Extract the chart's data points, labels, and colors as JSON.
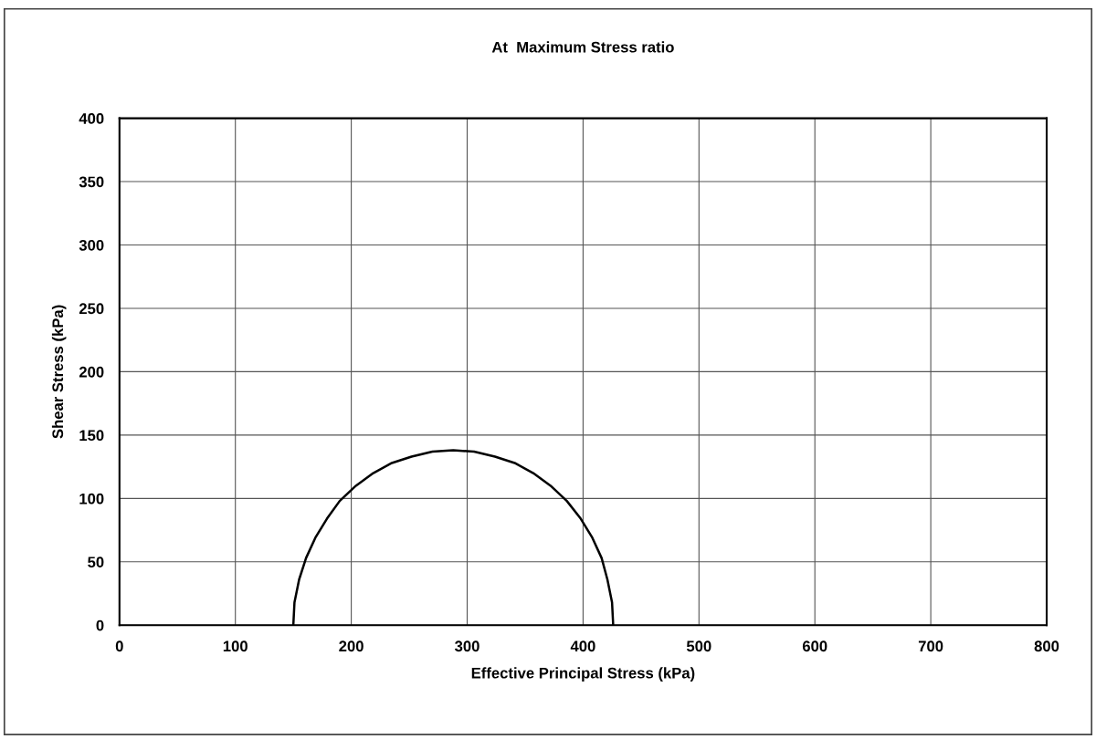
{
  "chart_data": {
    "type": "line",
    "title": "At  Maximum Stress ratio",
    "xlabel": "Effective Principal Stress (kPa)",
    "ylabel": "Shear Stress (kPa)",
    "x": [
      150,
      151,
      155,
      161,
      169,
      179,
      190,
      204,
      219,
      235,
      252,
      270,
      288,
      306,
      324,
      341,
      357,
      372,
      386,
      398,
      408,
      416,
      421,
      425,
      426
    ],
    "series": [
      {
        "color": "#000000",
        "values": [
          0,
          18,
          36,
          53,
          69,
          84,
          98,
          110,
          120,
          128,
          133,
          137,
          138,
          137,
          133,
          128,
          120,
          110,
          98,
          84,
          69,
          53,
          36,
          18,
          0
        ]
      }
    ],
    "xlim": [
      0,
      800
    ],
    "xticks": [
      0,
      100,
      200,
      300,
      400,
      500,
      600,
      700,
      800
    ],
    "ylim": [
      0,
      400
    ],
    "yticks": [
      0,
      50,
      100,
      150,
      200,
      250,
      300,
      350,
      400
    ],
    "grid": true,
    "marker": "none",
    "line_style": "solid"
  }
}
